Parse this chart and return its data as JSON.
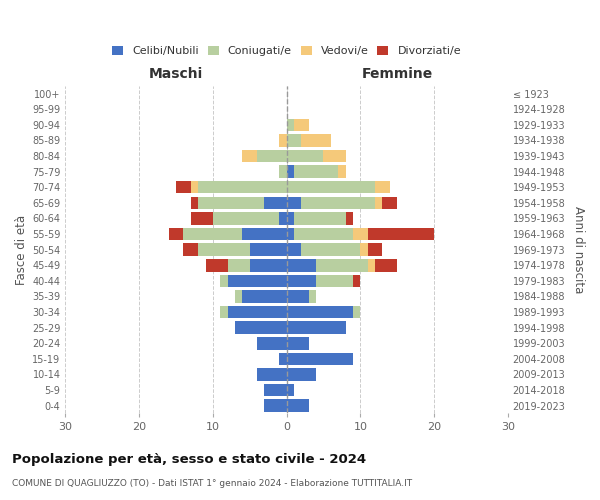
{
  "age_groups": [
    "0-4",
    "5-9",
    "10-14",
    "15-19",
    "20-24",
    "25-29",
    "30-34",
    "35-39",
    "40-44",
    "45-49",
    "50-54",
    "55-59",
    "60-64",
    "65-69",
    "70-74",
    "75-79",
    "80-84",
    "85-89",
    "90-94",
    "95-99",
    "100+"
  ],
  "birth_years": [
    "2019-2023",
    "2014-2018",
    "2009-2013",
    "2004-2008",
    "1999-2003",
    "1994-1998",
    "1989-1993",
    "1984-1988",
    "1979-1983",
    "1974-1978",
    "1969-1973",
    "1964-1968",
    "1959-1963",
    "1954-1958",
    "1949-1953",
    "1944-1948",
    "1939-1943",
    "1934-1938",
    "1929-1933",
    "1924-1928",
    "≤ 1923"
  ],
  "colors": {
    "celibe": "#4472c4",
    "coniugato": "#b8cfa0",
    "vedovo": "#f5c97a",
    "divorziato": "#c0392b"
  },
  "maschi": {
    "celibe": [
      3,
      3,
      4,
      1,
      4,
      7,
      8,
      6,
      8,
      5,
      5,
      6,
      1,
      3,
      0,
      0,
      0,
      0,
      0,
      0,
      0
    ],
    "coniugato": [
      0,
      0,
      0,
      0,
      0,
      0,
      1,
      1,
      1,
      3,
      7,
      8,
      9,
      9,
      12,
      1,
      4,
      0,
      0,
      0,
      0
    ],
    "vedovo": [
      0,
      0,
      0,
      0,
      0,
      0,
      0,
      0,
      0,
      0,
      0,
      0,
      0,
      0,
      1,
      0,
      2,
      1,
      0,
      0,
      0
    ],
    "divorziato": [
      0,
      0,
      0,
      0,
      0,
      0,
      0,
      0,
      0,
      3,
      2,
      2,
      3,
      1,
      2,
      0,
      0,
      0,
      0,
      0,
      0
    ]
  },
  "femmine": {
    "celibe": [
      3,
      1,
      4,
      9,
      3,
      8,
      9,
      3,
      4,
      4,
      2,
      1,
      1,
      2,
      0,
      1,
      0,
      0,
      0,
      0,
      0
    ],
    "coniugato": [
      0,
      0,
      0,
      0,
      0,
      0,
      1,
      1,
      5,
      7,
      8,
      8,
      7,
      10,
      12,
      6,
      5,
      2,
      1,
      0,
      0
    ],
    "vedovo": [
      0,
      0,
      0,
      0,
      0,
      0,
      0,
      0,
      0,
      1,
      1,
      2,
      0,
      1,
      2,
      1,
      3,
      4,
      2,
      0,
      0
    ],
    "divorziato": [
      0,
      0,
      0,
      0,
      0,
      0,
      0,
      0,
      1,
      3,
      2,
      9,
      1,
      2,
      0,
      0,
      0,
      0,
      0,
      0,
      0
    ]
  },
  "xlim": 30,
  "title_main": "Popolazione per età, sesso e stato civile - 2024",
  "title_sub": "COMUNE DI QUAGLIUZZO (TO) - Dati ISTAT 1° gennaio 2024 - Elaborazione TUTTITALIA.IT",
  "ylabel_left": "Fasce di età",
  "ylabel_right": "Anni di nascita",
  "xlabel_maschi": "Maschi",
  "xlabel_femmine": "Femmine",
  "legend_labels": [
    "Celibi/Nubili",
    "Coniugati/e",
    "Vedovi/e",
    "Divorziati/e"
  ],
  "bg_color": "#ffffff"
}
